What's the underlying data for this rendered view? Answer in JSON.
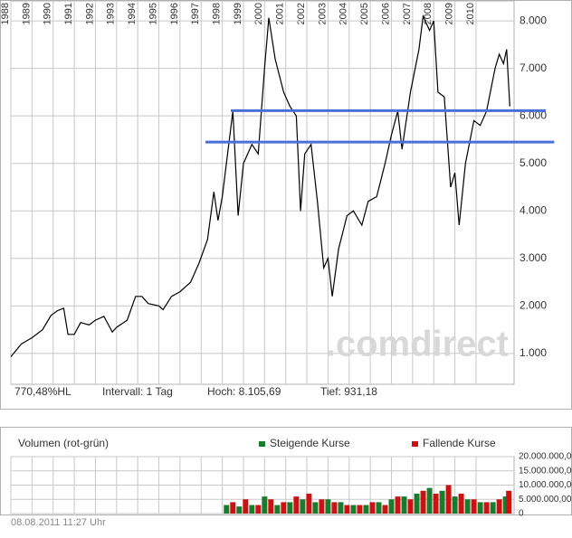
{
  "chart_data": [
    {
      "type": "line",
      "x": [
        1988.0,
        1988.5,
        1989.0,
        1989.5,
        1989.9,
        1990.2,
        1990.5,
        1990.7,
        1991.0,
        1991.3,
        1991.7,
        1992.0,
        1992.4,
        1992.8,
        1993.0,
        1993.5,
        1993.9,
        1994.2,
        1994.5,
        1995.0,
        1995.2,
        1995.6,
        1996.0,
        1996.5,
        1996.9,
        1997.3,
        1997.6,
        1997.8,
        1998.0,
        1998.5,
        1998.75,
        1999.0,
        1999.4,
        1999.7,
        2000.0,
        2000.2,
        2000.5,
        2000.9,
        2001.2,
        2001.5,
        2001.7,
        2001.9,
        2002.2,
        2002.5,
        2002.8,
        2003.0,
        2003.2,
        2003.5,
        2003.9,
        2004.2,
        2004.6,
        2004.9,
        2005.3,
        2005.7,
        2006.0,
        2006.3,
        2006.5,
        2006.9,
        2007.3,
        2007.5,
        2007.8,
        2008.0,
        2008.2,
        2008.5,
        2008.8,
        2009.0,
        2009.2,
        2009.5,
        2009.9,
        2010.2,
        2010.5,
        2010.9,
        2011.1,
        2011.3,
        2011.45,
        2011.6
      ],
      "values": [
        931,
        1200,
        1330,
        1500,
        1800,
        1900,
        1950,
        1400,
        1400,
        1650,
        1600,
        1700,
        1780,
        1450,
        1550,
        1700,
        2200,
        2200,
        2050,
        2000,
        1920,
        2200,
        2300,
        2500,
        2900,
        3400,
        4400,
        3800,
        4300,
        6100,
        3900,
        5000,
        5400,
        5200,
        7000,
        8065,
        7200,
        6500,
        6200,
        6000,
        4000,
        5200,
        5400,
        4200,
        2800,
        3000,
        2200,
        3200,
        3900,
        4000,
        3700,
        4200,
        4300,
        5000,
        5600,
        6100,
        5300,
        6500,
        7400,
        8100,
        7800,
        8000,
        6500,
        6400,
        4500,
        4800,
        3700,
        5000,
        5900,
        5800,
        6100,
        7000,
        7300,
        7100,
        7400,
        6200
      ],
      "color": "#000000",
      "xlim": [
        1988,
        2011.8
      ],
      "xticks": [
        1988,
        1989,
        1990,
        1991,
        1992,
        1993,
        1994,
        1995,
        1996,
        1997,
        1998,
        1999,
        2000,
        2001,
        2002,
        2003,
        2004,
        2005,
        2006,
        2007,
        2008,
        2009,
        2010
      ],
      "ylim": [
        350,
        8440
      ],
      "yticks": [
        {
          "value": 1000,
          "label": "1.000"
        },
        {
          "value": 2000,
          "label": "2.000"
        },
        {
          "value": 3000,
          "label": "3.000"
        },
        {
          "value": 4000,
          "label": "4.000"
        },
        {
          "value": 5000,
          "label": "5.000"
        },
        {
          "value": 6000,
          "label": "6.000"
        },
        {
          "value": 7000,
          "label": "7.000"
        },
        {
          "value": 8000,
          "label": "8.000"
        }
      ],
      "grid": true,
      "hlines": [
        {
          "value": 6110,
          "from": 1998.4,
          "to": 2013.3,
          "color": "#4a6fd8"
        },
        {
          "value": 5450,
          "from": 1997.2,
          "to": 2013.7,
          "color": "#4a6fd8"
        }
      ],
      "watermark": ".comdirect",
      "stats": [
        "770,48%HL",
        "Intervall: 1 Tag",
        "Hoch: 8.105,69",
        "Tief: 931,18"
      ]
    },
    {
      "type": "bar",
      "title": "Volumen (rot-grün)",
      "xlim": [
        1988,
        2011.8
      ],
      "ylim": [
        0,
        20000000
      ],
      "yticks": [
        {
          "value": 0,
          "label": "0"
        },
        {
          "value": 5000000,
          "label": "5.000.000,00"
        },
        {
          "value": 10000000,
          "label": "10.000.000,00"
        },
        {
          "value": 15000000,
          "label": "15.000.000,00"
        },
        {
          "value": 20000000,
          "label": "20.000.000,00"
        }
      ],
      "series": [
        {
          "name": "Steigende Kurse",
          "color": "#1a7a2e",
          "x": [
            1998.2,
            1998.8,
            1999.4,
            2000.0,
            2000.6,
            2001.2,
            2001.8,
            2002.4,
            2003.0,
            2003.6,
            2004.2,
            2004.8,
            2005.4,
            2006.0,
            2006.6,
            2007.2,
            2007.8,
            2008.4,
            2009.0,
            2009.6,
            2010.2,
            2010.8,
            2011.4
          ],
          "values": [
            3000000,
            2500000,
            3000000,
            6000000,
            3000000,
            4000000,
            5000000,
            4000000,
            5000000,
            4000000,
            3000000,
            3000000,
            4000000,
            5000000,
            6000000,
            7000000,
            9000000,
            8000000,
            6000000,
            5000000,
            4000000,
            4000000,
            6000000
          ]
        },
        {
          "name": "Fallende Kurse",
          "color": "#cc1111",
          "x": [
            1998.5,
            1999.1,
            1999.7,
            2000.3,
            2000.9,
            2001.5,
            2002.1,
            2002.7,
            2003.3,
            2003.9,
            2004.5,
            2005.1,
            2005.7,
            2006.3,
            2006.9,
            2007.5,
            2008.1,
            2008.7,
            2009.3,
            2009.9,
            2010.5,
            2011.1,
            2011.55
          ],
          "values": [
            4000000,
            5000000,
            3000000,
            5000000,
            4000000,
            6000000,
            7000000,
            5000000,
            4000000,
            3000000,
            3000000,
            4000000,
            3000000,
            6000000,
            5000000,
            8000000,
            7000000,
            10000000,
            7000000,
            5000000,
            4000000,
            5000000,
            8000000
          ]
        }
      ]
    }
  ],
  "timestamp": "08.08.2011 11:27 Uhr"
}
